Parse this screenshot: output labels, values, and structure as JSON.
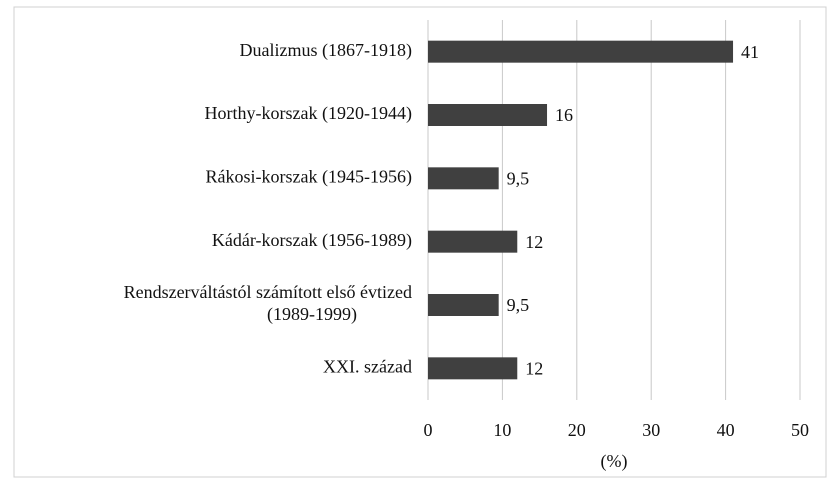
{
  "chart_data": {
    "type": "bar",
    "orientation": "horizontal",
    "categories": [
      "Dualizmus (1867-1918)",
      "Horthy-korszak (1920-1944)",
      "Rákosi-korszak (1945-1956)",
      "Kádár-korszak (1956-1989)",
      "Rendszerváltástól számított első évtized\n(1989-1999)",
      "XXI. század"
    ],
    "values": [
      41,
      16,
      9.5,
      12,
      9.5,
      12
    ],
    "value_labels": [
      "41",
      "16",
      "9,5",
      "12",
      "9,5",
      "12"
    ],
    "color": "#404040",
    "xlim": [
      0,
      50
    ],
    "xticks": [
      0,
      10,
      20,
      30,
      40,
      50
    ],
    "grid": true,
    "x_label": "(%)"
  }
}
